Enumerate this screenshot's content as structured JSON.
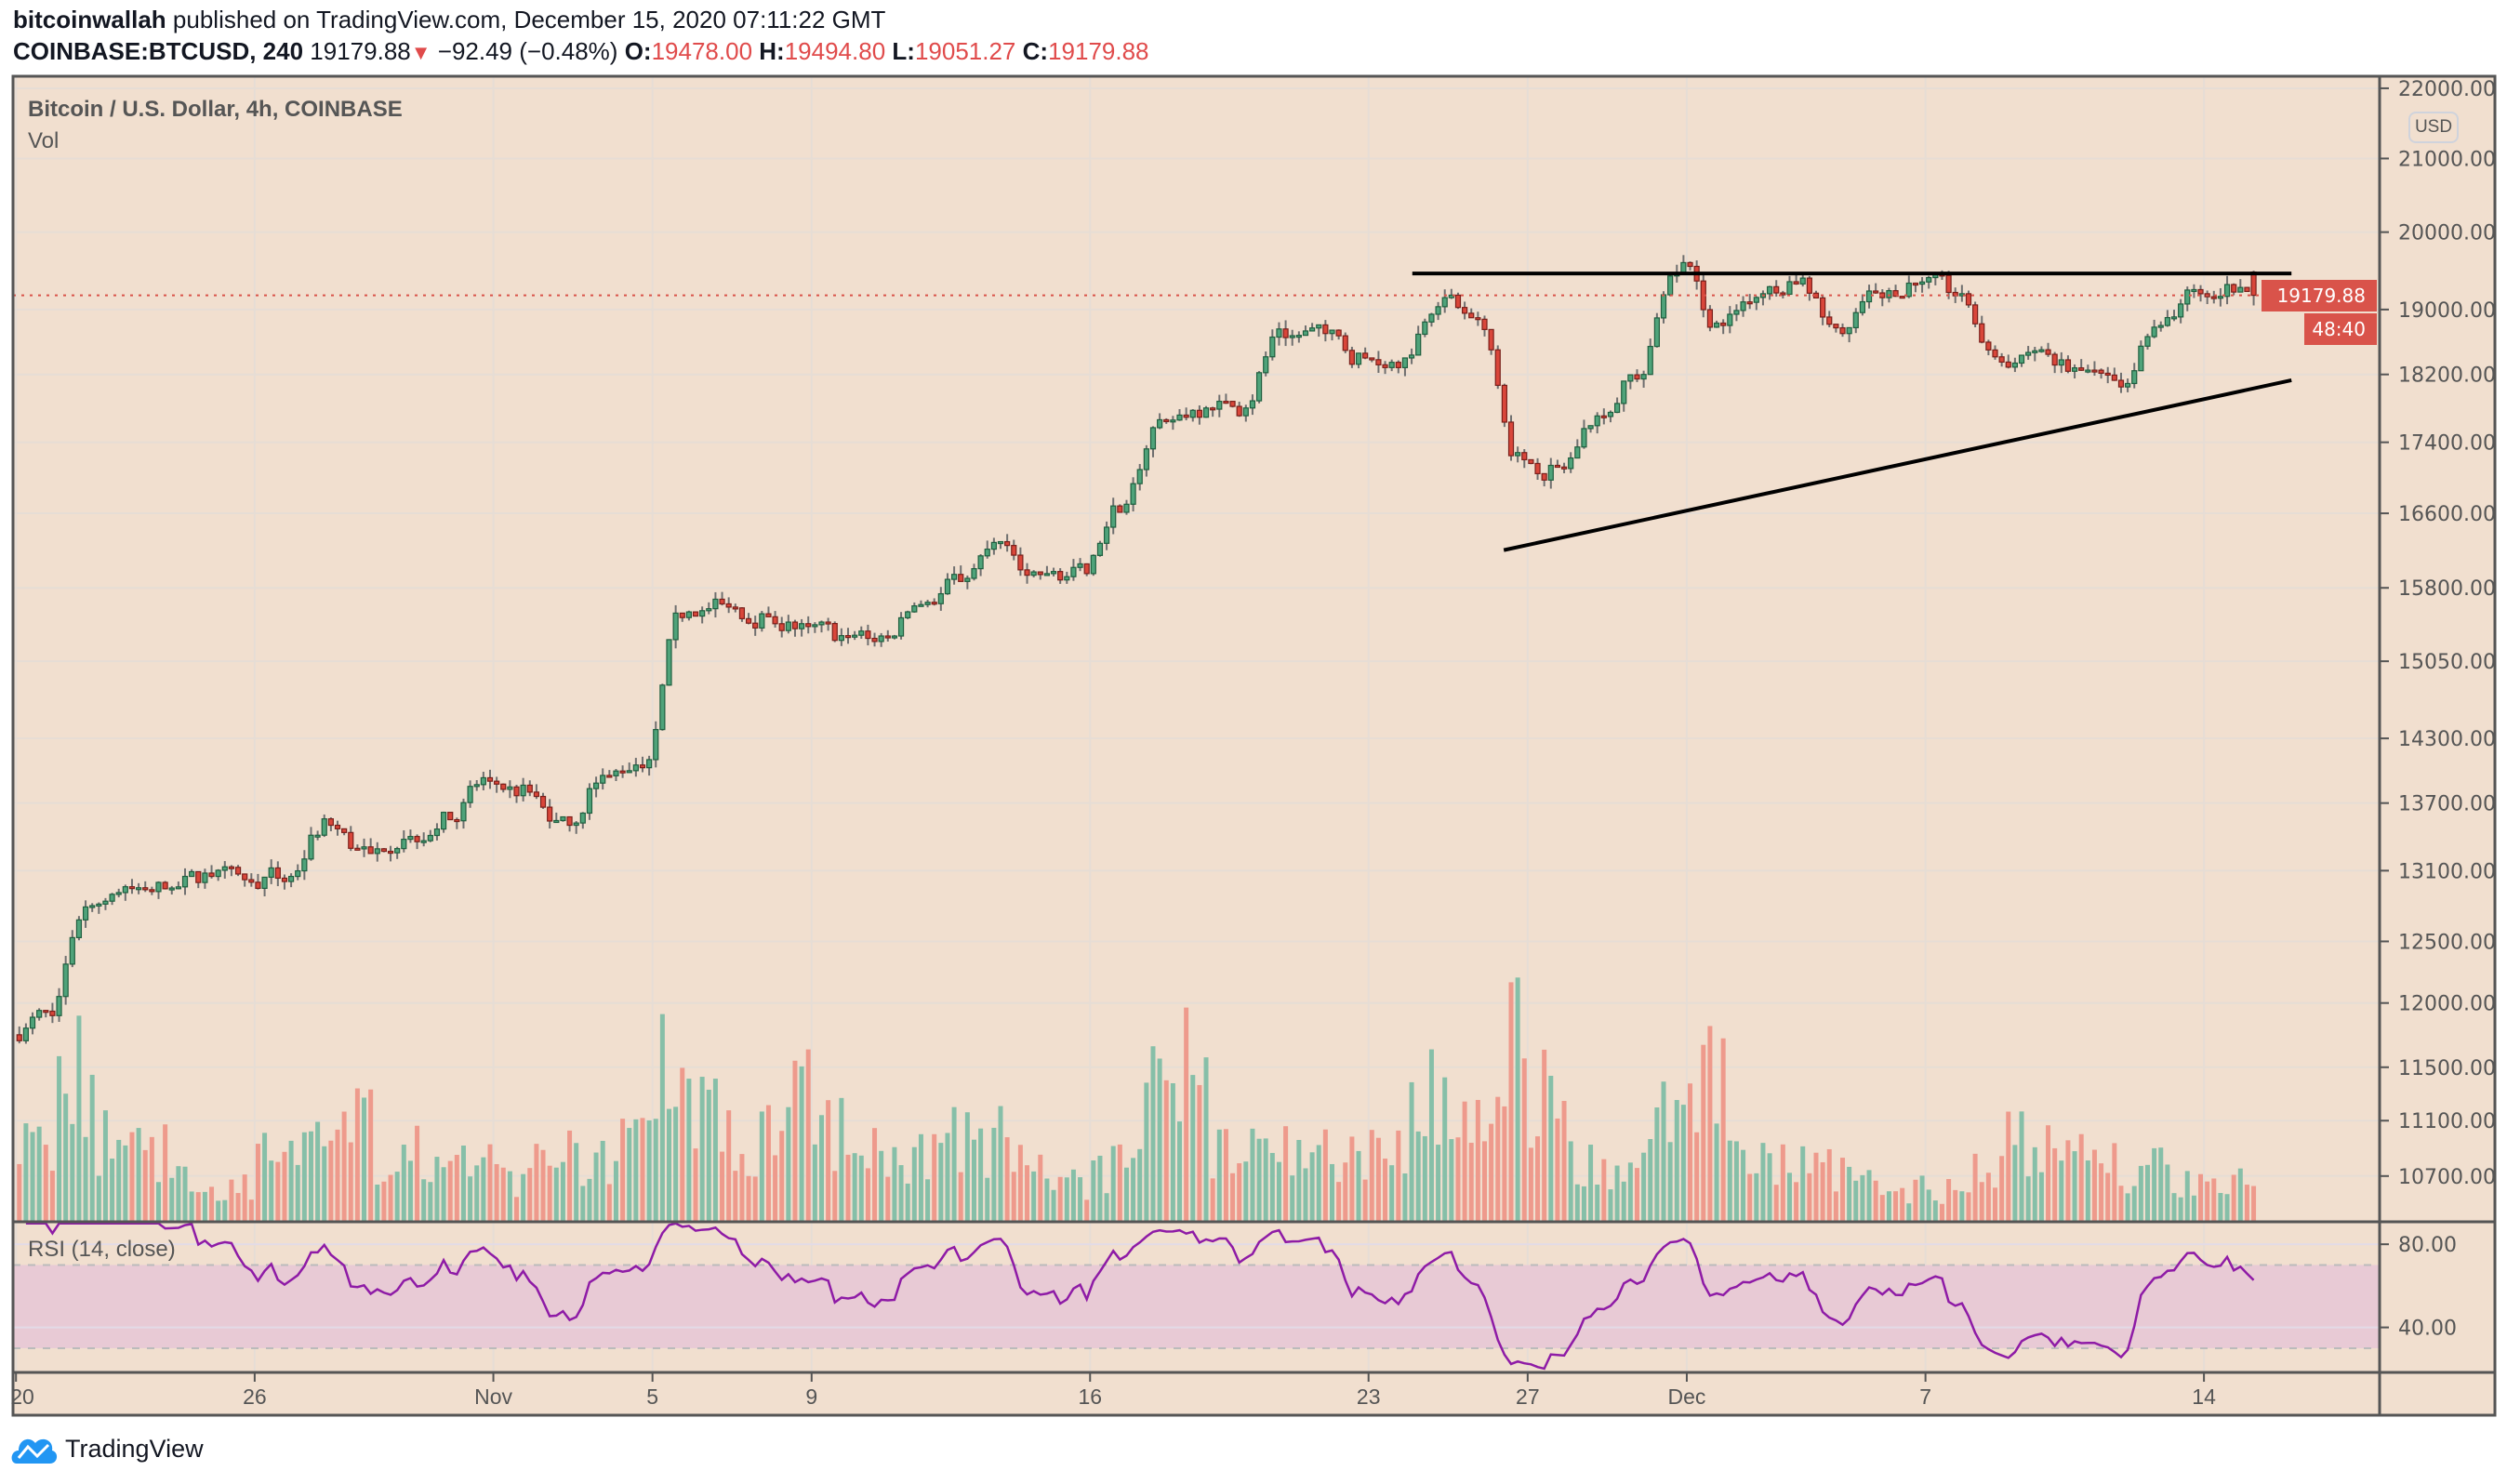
{
  "header": {
    "author": "bitcoinwallah",
    "published": "published on TradingView.com, December 15, 2020 07:11:22 GMT",
    "symbol": "COINBASE:BTCUSD, 240",
    "last": "19179.88",
    "change": "−92.49 (−0.48%)",
    "o_label": "O:",
    "o": "19478.00",
    "h_label": "H:",
    "h": "19494.80",
    "l_label": "L:",
    "l": "19051.27",
    "c_label": "C:",
    "c": "19179.88"
  },
  "legend": {
    "title": "Bitcoin / U.S. Dollar, 4h, COINBASE",
    "vol": "Vol",
    "rsi": "RSI (14, close)"
  },
  "price_axis": {
    "currency": "USD",
    "ticks": [
      "22000.00",
      "21000.00",
      "20000.00",
      "19000.00",
      "18200.00",
      "17400.00",
      "16600.00",
      "15800.00",
      "15050.00",
      "14300.00",
      "13700.00",
      "13100.00",
      "12500.00",
      "12000.00",
      "11500.00",
      "11100.00",
      "10700.00"
    ],
    "last_price_label": "19179.88",
    "countdown": "48:40"
  },
  "rsi_axis": {
    "ticks": [
      "80.00",
      "40.00"
    ],
    "upper_band": 70,
    "lower_band": 30
  },
  "time_axis": {
    "labels": [
      {
        "text": "20",
        "day": 0
      },
      {
        "text": "26",
        "day": 6
      },
      {
        "text": "Nov",
        "day": 12
      },
      {
        "text": "5",
        "day": 16
      },
      {
        "text": "9",
        "day": 20
      },
      {
        "text": "16",
        "day": 27
      },
      {
        "text": "23",
        "day": 34
      },
      {
        "text": "27",
        "day": 38
      },
      {
        "text": "Dec",
        "day": 42
      },
      {
        "text": "7",
        "day": 48
      },
      {
        "text": "14",
        "day": 55
      }
    ]
  },
  "footer": {
    "brand": "TradingView"
  },
  "colors": {
    "background": "#f1dfcf",
    "up": "#4fa37a",
    "up_border": "#1f5f3f",
    "down": "#d9463a",
    "down_border": "#7a1f1a",
    "vol_up": "#86bfa8",
    "vol_down": "#ee9a8c",
    "rsi_line": "#8e1ba6",
    "rsi_band": "#e8cad5",
    "last_price": "#d9534a"
  },
  "chart_data": {
    "type": "candlestick",
    "title": "Bitcoin / U.S. Dollar, 4h, COINBASE",
    "start_date": "2020-10-20",
    "interval": "4h",
    "first_open": 11750,
    "daily_closes": [
      11900,
      12800,
      12950,
      12950,
      13050,
      13000,
      13050,
      13500,
      13250,
      13400,
      13550,
      13900,
      13800,
      13500,
      13950,
      14100,
      15550,
      15600,
      15500,
      15400,
      15300,
      15300,
      15650,
      15900,
      16250,
      15950,
      15950,
      16700,
      17650,
      17800,
      17800,
      18650,
      18700,
      18400,
      18400,
      19150,
      18750,
      17200,
      17100,
      17700,
      18200,
      19600,
      18800,
      19200,
      19400,
      18700,
      19150,
      19350,
      19200,
      18350,
      18500,
      18250,
      18050,
      18800,
      19200,
      19280,
      19180
    ],
    "daily_volume_level": [
      0.3,
      0.55,
      0.3,
      0.25,
      0.15,
      0.15,
      0.25,
      0.3,
      0.4,
      0.25,
      0.25,
      0.2,
      0.15,
      0.25,
      0.25,
      0.3,
      0.55,
      0.45,
      0.3,
      0.45,
      0.35,
      0.25,
      0.25,
      0.3,
      0.3,
      0.2,
      0.15,
      0.2,
      0.45,
      0.55,
      0.3,
      0.3,
      0.25,
      0.25,
      0.3,
      0.45,
      0.35,
      0.7,
      0.45,
      0.25,
      0.2,
      0.4,
      0.6,
      0.25,
      0.2,
      0.2,
      0.15,
      0.12,
      0.12,
      0.2,
      0.3,
      0.25,
      0.25,
      0.2,
      0.15,
      0.15,
      0.15
    ],
    "last_candle": {
      "open": 19478.0,
      "high": 19494.8,
      "low": 19051.27,
      "close": 19179.88
    },
    "price_range": [
      10500,
      22100
    ],
    "scale": "log",
    "rsi": {
      "length": 14,
      "source": "close",
      "range": [
        17,
        90
      ]
    },
    "trendlines": [
      {
        "name": "resistance",
        "from": {
          "day": 35.1,
          "price": 19460
        },
        "to": {
          "day": 57.2,
          "price": 19460
        }
      },
      {
        "name": "ascending-support",
        "from": {
          "day": 37.4,
          "price": 16200
        },
        "to": {
          "day": 57.2,
          "price": 18130
        }
      }
    ]
  }
}
